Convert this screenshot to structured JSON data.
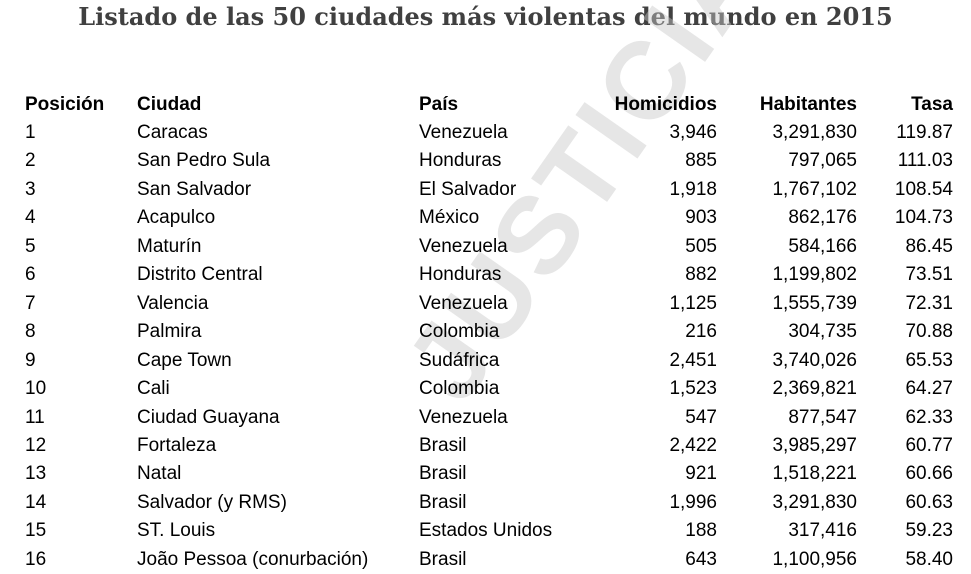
{
  "title": "Listado de las 50 ciudades más violentas del mundo en 2015",
  "watermark": "JUSTICIA Y PAZ",
  "headers": [
    "Posición",
    "Ciudad",
    "País",
    "Homicidios",
    "Habitantes",
    "Tasa"
  ],
  "rows": [
    [
      "1",
      "Caracas",
      "Venezuela",
      "3,946",
      "3,291,830",
      "119.87"
    ],
    [
      "2",
      "San Pedro Sula",
      "Honduras",
      "885",
      "797,065",
      "111.03"
    ],
    [
      "3",
      "San Salvador",
      "El Salvador",
      "1,918",
      "1,767,102",
      "108.54"
    ],
    [
      "4",
      "Acapulco",
      "México",
      "903",
      "862,176",
      "104.73"
    ],
    [
      "5",
      "Maturín",
      "Venezuela",
      "505",
      "584,166",
      "86.45"
    ],
    [
      "6",
      "Distrito Central",
      "Honduras",
      "882",
      "1,199,802",
      "73.51"
    ],
    [
      "7",
      "Valencia",
      "Venezuela",
      "1,125",
      "1,555,739",
      "72.31"
    ],
    [
      "8",
      "Palmira",
      "Colombia",
      "216",
      "304,735",
      "70.88"
    ],
    [
      "9",
      "Cape Town",
      "Sudáfrica",
      "2,451",
      "3,740,026",
      "65.53"
    ],
    [
      "10",
      "Cali",
      "Colombia",
      "1,523",
      "2,369,821",
      "64.27"
    ],
    [
      "11",
      "Ciudad Guayana",
      "Venezuela",
      "547",
      "877,547",
      "62.33"
    ],
    [
      "12",
      "Fortaleza",
      "Brasil",
      "2,422",
      "3,985,297",
      "60.77"
    ],
    [
      "13",
      "Natal",
      "Brasil",
      "921",
      "1,518,221",
      "60.66"
    ],
    [
      "14",
      "Salvador (y RMS)",
      "Brasil",
      "1,996",
      "3,291,830",
      "60.63"
    ],
    [
      "15",
      "ST. Louis",
      "Estados Unidos",
      "188",
      "317,416",
      "59.23"
    ],
    [
      "16",
      "João Pessoa (conurbación)",
      "Brasil",
      "643",
      "1,100,956",
      "58.40"
    ]
  ]
}
